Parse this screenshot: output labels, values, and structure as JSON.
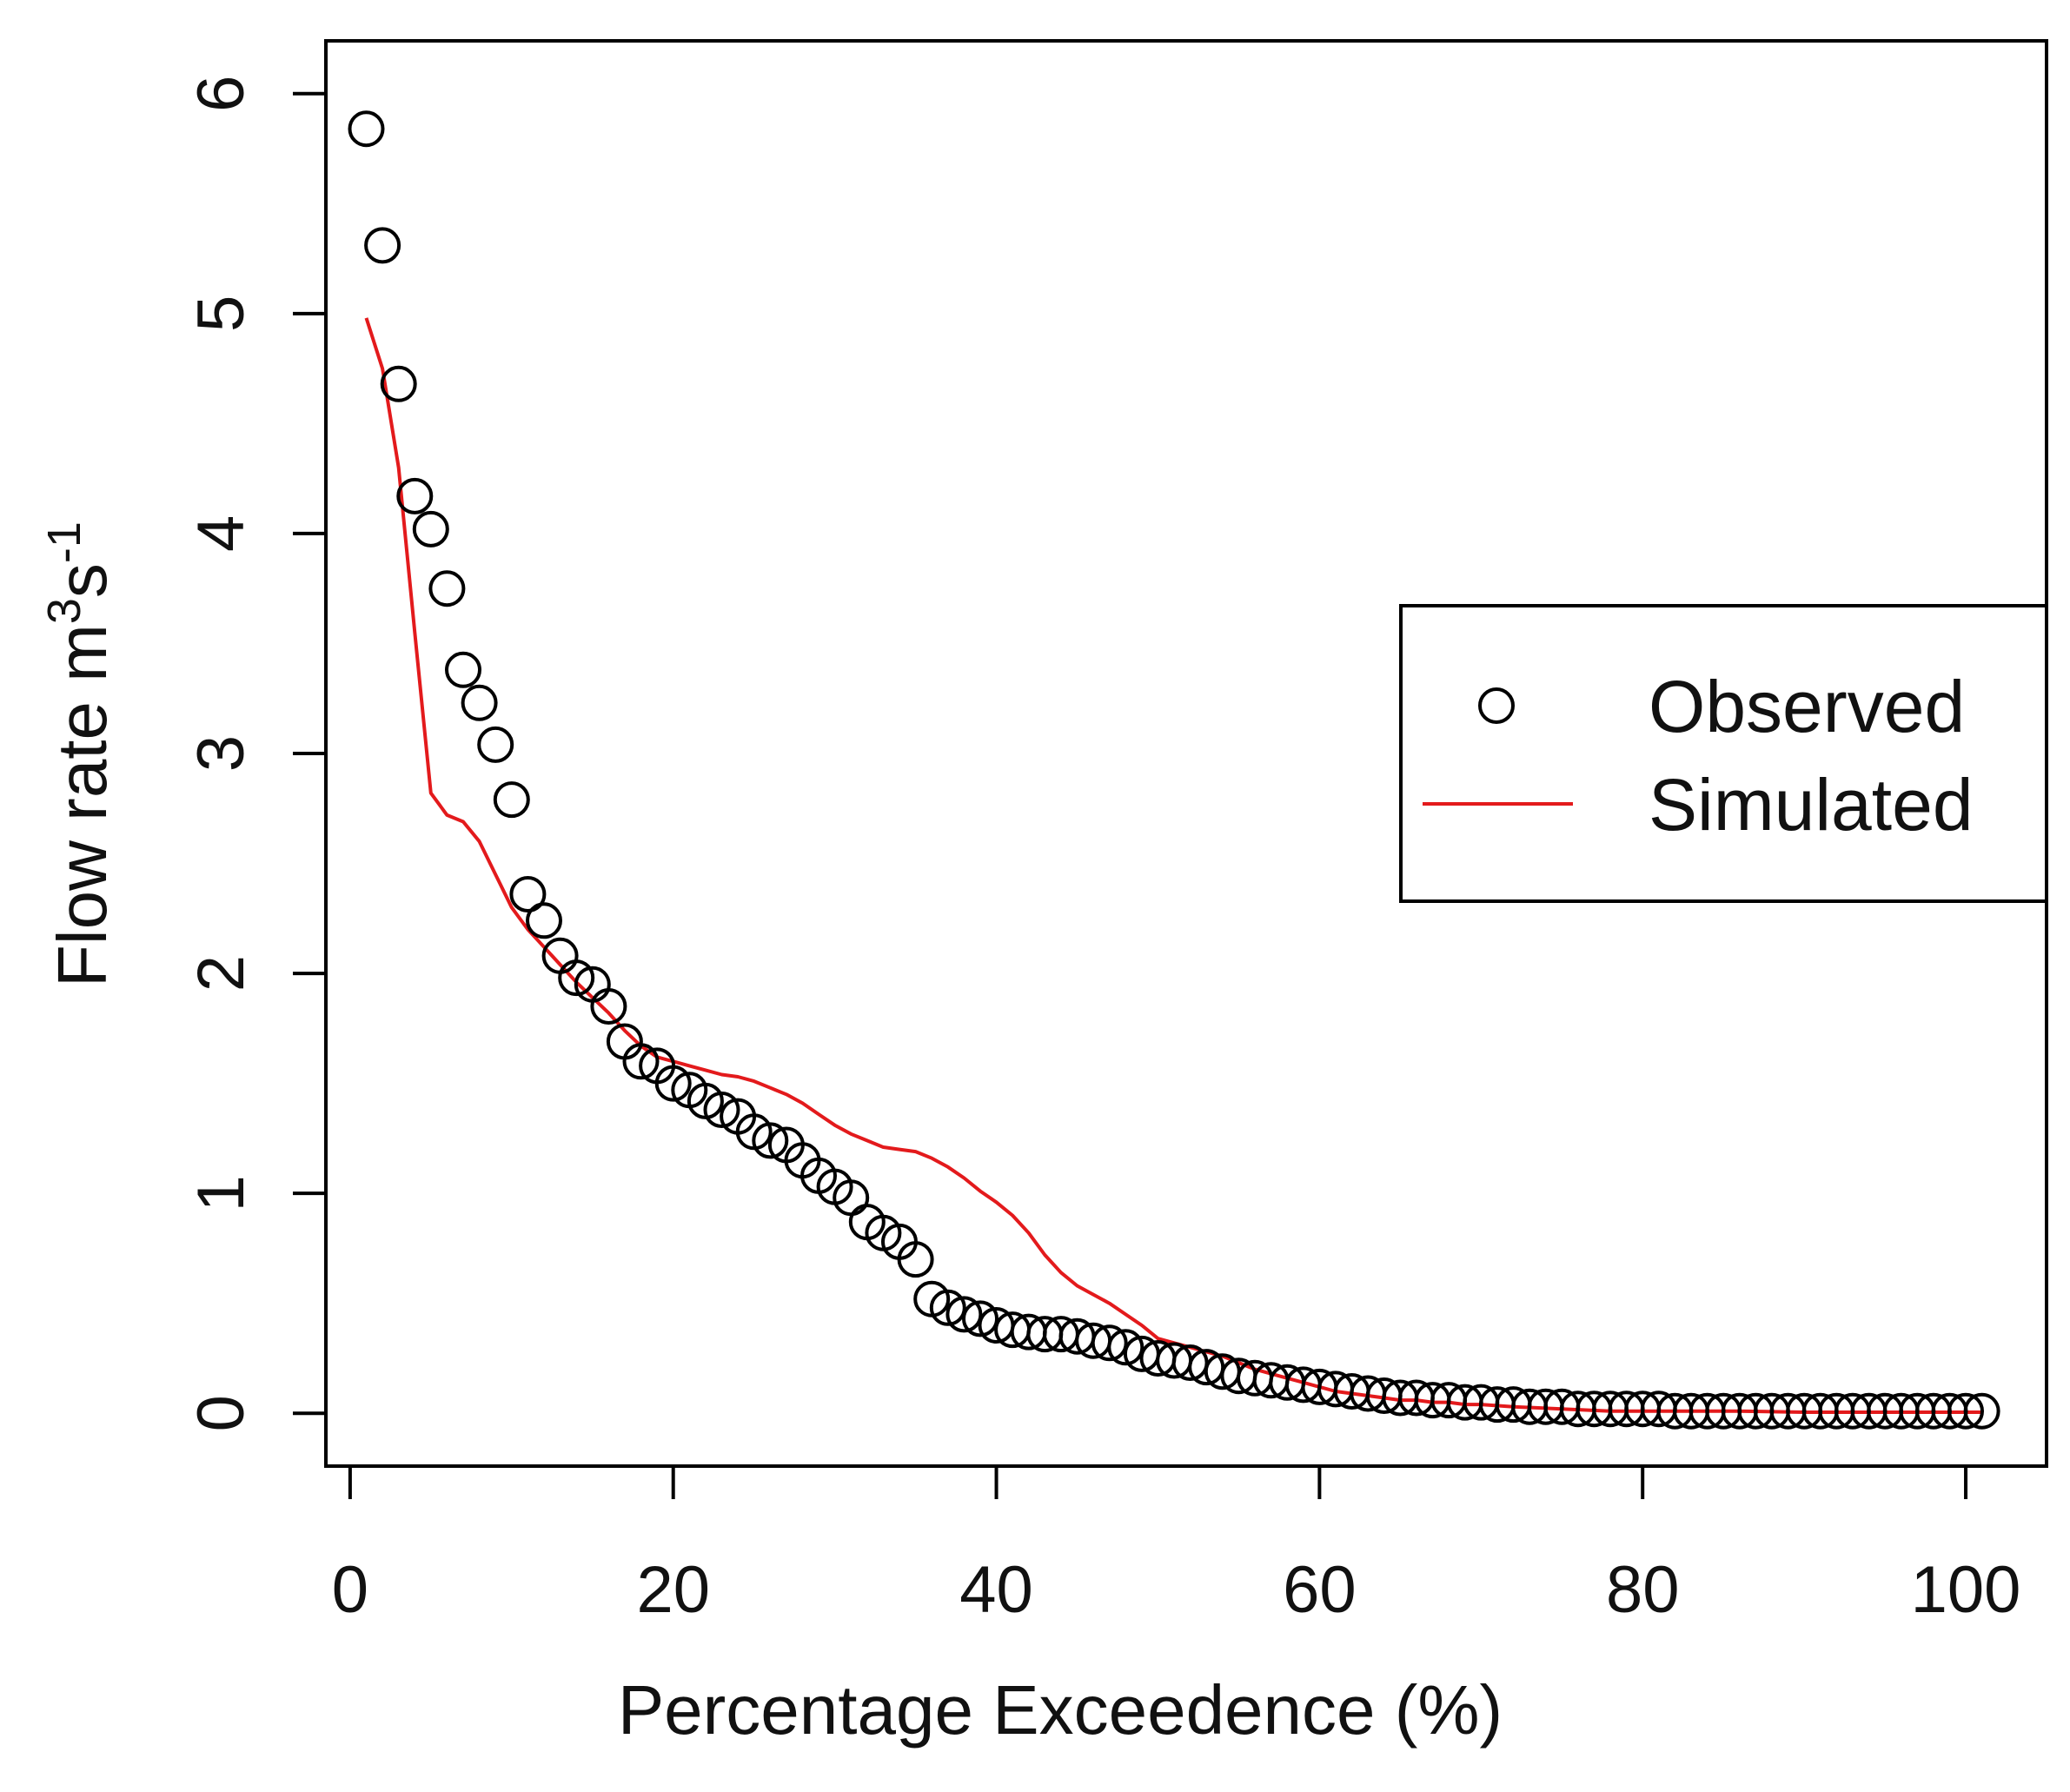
{
  "chart_data": {
    "type": "scatter",
    "title": "",
    "xlabel": "Percentage Exceedence (%)",
    "ylabel_parts": [
      "Flow rate m",
      "3",
      "s",
      "-1"
    ],
    "xlim": [
      -1.5,
      105
    ],
    "ylim": [
      -0.24,
      6.24
    ],
    "x_ticks": [
      0,
      20,
      40,
      60,
      80,
      100
    ],
    "y_ticks": [
      0,
      1,
      2,
      3,
      4,
      5,
      6
    ],
    "x_tick_labels": [
      "0",
      "20",
      "40",
      "60",
      "80",
      "100"
    ],
    "y_tick_labels": [
      "0",
      "1",
      "2",
      "3",
      "4",
      "5",
      "6"
    ],
    "legend": {
      "position": "right",
      "entries": [
        {
          "label": "Observed",
          "marker": "circle"
        },
        {
          "label": "Simulated",
          "marker": "line"
        }
      ]
    },
    "colors": {
      "observed": "#000000",
      "simulated": "#e31a1c"
    },
    "series": [
      {
        "name": "Observed",
        "style": "circle",
        "points": [
          [
            1,
            5.84
          ],
          [
            2,
            5.31
          ],
          [
            3,
            4.68
          ],
          [
            4,
            4.17
          ],
          [
            5,
            4.02
          ],
          [
            6,
            3.75
          ],
          [
            7,
            3.38
          ],
          [
            8,
            3.23
          ],
          [
            9,
            3.04
          ],
          [
            10,
            2.79
          ],
          [
            11,
            2.36
          ],
          [
            12,
            2.24
          ],
          [
            13,
            2.08
          ],
          [
            14,
            1.98
          ],
          [
            15,
            1.95
          ],
          [
            16,
            1.85
          ],
          [
            17,
            1.69
          ],
          [
            18,
            1.6
          ],
          [
            19,
            1.58
          ],
          [
            20,
            1.5
          ],
          [
            21,
            1.47
          ],
          [
            22,
            1.42
          ],
          [
            23,
            1.38
          ],
          [
            24,
            1.35
          ],
          [
            25,
            1.28
          ],
          [
            26,
            1.24
          ],
          [
            27,
            1.22
          ],
          [
            28,
            1.15
          ],
          [
            29,
            1.08
          ],
          [
            30,
            1.03
          ],
          [
            31,
            0.98
          ],
          [
            32,
            0.87
          ],
          [
            33,
            0.82
          ],
          [
            34,
            0.78
          ],
          [
            35,
            0.7
          ],
          [
            36,
            0.52
          ],
          [
            37,
            0.48
          ],
          [
            38,
            0.45
          ],
          [
            39,
            0.43
          ],
          [
            40,
            0.4
          ],
          [
            41,
            0.38
          ],
          [
            42,
            0.37
          ],
          [
            43,
            0.36
          ],
          [
            44,
            0.36
          ],
          [
            45,
            0.35
          ],
          [
            46,
            0.33
          ],
          [
            47,
            0.32
          ],
          [
            48,
            0.3
          ],
          [
            49,
            0.27
          ],
          [
            50,
            0.25
          ],
          [
            51,
            0.24
          ],
          [
            52,
            0.23
          ],
          [
            53,
            0.21
          ],
          [
            54,
            0.19
          ],
          [
            55,
            0.17
          ],
          [
            56,
            0.16
          ],
          [
            57,
            0.15
          ],
          [
            58,
            0.14
          ],
          [
            59,
            0.13
          ],
          [
            60,
            0.12
          ],
          [
            61,
            0.11
          ],
          [
            62,
            0.1
          ],
          [
            63,
            0.09
          ],
          [
            64,
            0.08
          ],
          [
            65,
            0.07
          ],
          [
            66,
            0.07
          ],
          [
            67,
            0.06
          ],
          [
            68,
            0.06
          ],
          [
            69,
            0.05
          ],
          [
            70,
            0.05
          ],
          [
            71,
            0.04
          ],
          [
            72,
            0.04
          ],
          [
            73,
            0.03
          ],
          [
            74,
            0.03
          ],
          [
            75,
            0.03
          ],
          [
            76,
            0.02
          ],
          [
            77,
            0.02
          ],
          [
            78,
            0.02
          ],
          [
            79,
            0.02
          ],
          [
            80,
            0.02
          ],
          [
            81,
            0.02
          ],
          [
            82,
            0.01
          ],
          [
            83,
            0.01
          ],
          [
            84,
            0.01
          ],
          [
            85,
            0.01
          ],
          [
            86,
            0.01
          ],
          [
            87,
            0.01
          ],
          [
            88,
            0.01
          ],
          [
            89,
            0.01
          ],
          [
            90,
            0.01
          ],
          [
            91,
            0.01
          ],
          [
            92,
            0.01
          ],
          [
            93,
            0.01
          ],
          [
            94,
            0.01
          ],
          [
            95,
            0.01
          ],
          [
            96,
            0.01
          ],
          [
            97,
            0.01
          ],
          [
            98,
            0.01
          ],
          [
            99,
            0.01
          ],
          [
            100,
            0.01
          ],
          [
            101,
            0.01
          ]
        ]
      },
      {
        "name": "Simulated",
        "style": "line",
        "points": [
          [
            1,
            4.98
          ],
          [
            2,
            4.75
          ],
          [
            3,
            4.3
          ],
          [
            4,
            3.55
          ],
          [
            5,
            2.82
          ],
          [
            6,
            2.72
          ],
          [
            7,
            2.69
          ],
          [
            8,
            2.6
          ],
          [
            9,
            2.45
          ],
          [
            10,
            2.3
          ],
          [
            11,
            2.2
          ],
          [
            12,
            2.12
          ],
          [
            13,
            2.04
          ],
          [
            14,
            1.96
          ],
          [
            15,
            1.89
          ],
          [
            16,
            1.82
          ],
          [
            17,
            1.74
          ],
          [
            18,
            1.67
          ],
          [
            19,
            1.62
          ],
          [
            20,
            1.6
          ],
          [
            21,
            1.58
          ],
          [
            22,
            1.56
          ],
          [
            23,
            1.54
          ],
          [
            24,
            1.53
          ],
          [
            25,
            1.51
          ],
          [
            26,
            1.48
          ],
          [
            27,
            1.45
          ],
          [
            28,
            1.41
          ],
          [
            29,
            1.36
          ],
          [
            30,
            1.31
          ],
          [
            31,
            1.27
          ],
          [
            32,
            1.24
          ],
          [
            33,
            1.21
          ],
          [
            34,
            1.2
          ],
          [
            35,
            1.19
          ],
          [
            36,
            1.16
          ],
          [
            37,
            1.12
          ],
          [
            38,
            1.07
          ],
          [
            39,
            1.01
          ],
          [
            40,
            0.96
          ],
          [
            41,
            0.9
          ],
          [
            42,
            0.82
          ],
          [
            43,
            0.72
          ],
          [
            44,
            0.64
          ],
          [
            45,
            0.58
          ],
          [
            46,
            0.54
          ],
          [
            47,
            0.5
          ],
          [
            48,
            0.45
          ],
          [
            49,
            0.4
          ],
          [
            50,
            0.34
          ],
          [
            51,
            0.32
          ],
          [
            52,
            0.3
          ],
          [
            53,
            0.28
          ],
          [
            54,
            0.26
          ],
          [
            55,
            0.23
          ],
          [
            56,
            0.2
          ],
          [
            57,
            0.18
          ],
          [
            58,
            0.16
          ],
          [
            59,
            0.14
          ],
          [
            60,
            0.12
          ],
          [
            61,
            0.1
          ],
          [
            62,
            0.09
          ],
          [
            63,
            0.08
          ],
          [
            64,
            0.07
          ],
          [
            65,
            0.06
          ],
          [
            66,
            0.06
          ],
          [
            67,
            0.05
          ],
          [
            68,
            0.05
          ],
          [
            69,
            0.04
          ],
          [
            70,
            0.04
          ],
          [
            72,
            0.03
          ],
          [
            75,
            0.02
          ],
          [
            78,
            0.01
          ],
          [
            82,
            0.01
          ],
          [
            86,
            0.01
          ],
          [
            90,
            0.005
          ],
          [
            95,
            0.005
          ],
          [
            101,
            0.005
          ]
        ]
      }
    ]
  }
}
